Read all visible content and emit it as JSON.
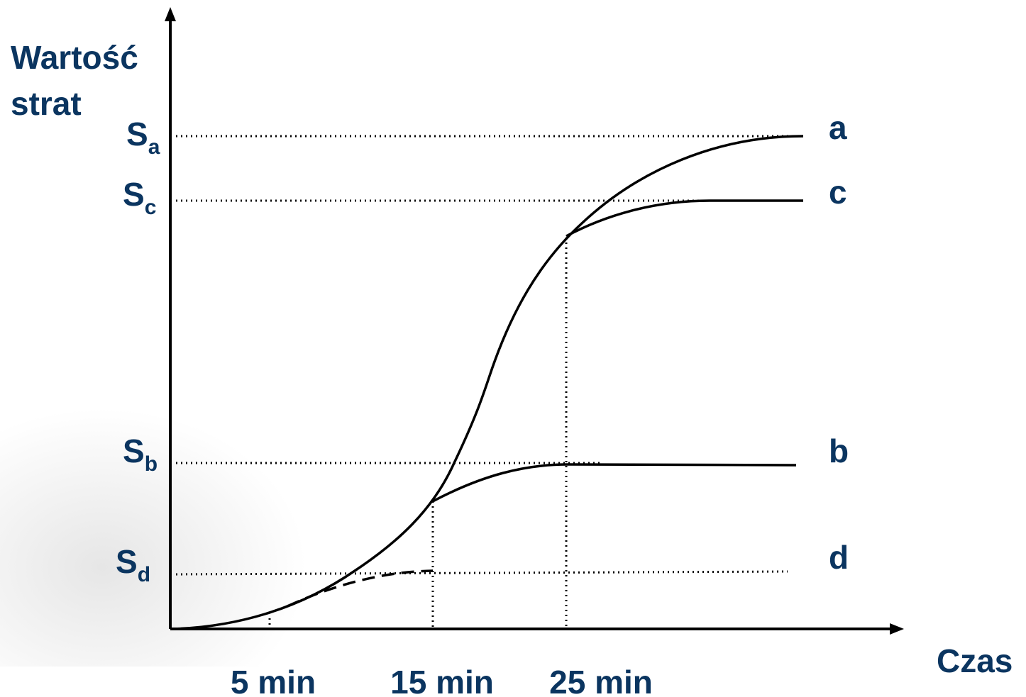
{
  "y_axis_label": [
    "Wartość",
    "strat"
  ],
  "x_axis_label": "Czas",
  "levels": [
    {
      "main": "S",
      "sub": "a"
    },
    {
      "main": "S",
      "sub": "c"
    },
    {
      "main": "S",
      "sub": "b"
    },
    {
      "main": "S",
      "sub": "d"
    }
  ],
  "curve_labels": [
    "a",
    "c",
    "b",
    "d"
  ],
  "time_labels": [
    "5 min",
    "15 min",
    "25 min"
  ]
}
